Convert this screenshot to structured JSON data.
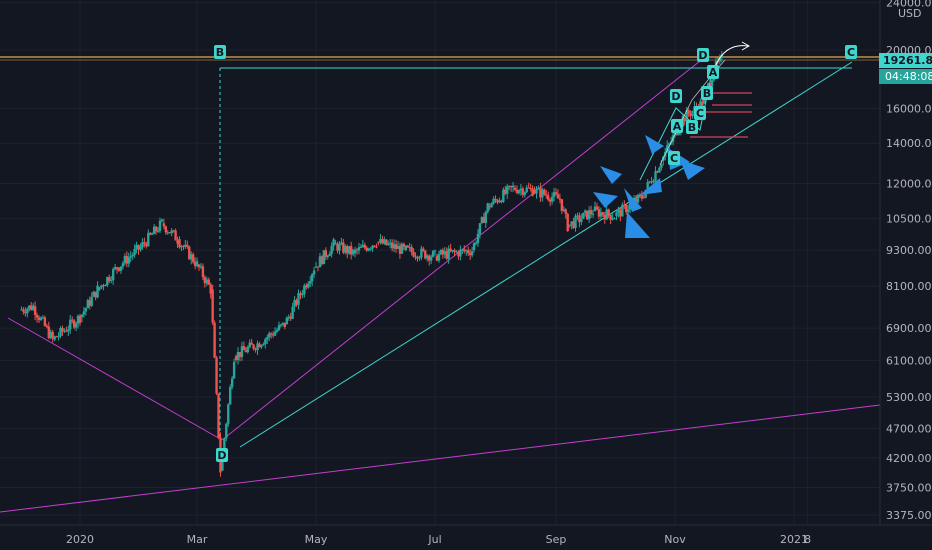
{
  "chart_data": {
    "type": "candlestick",
    "instrument_currency": "USD",
    "y_axis": {
      "scale": "log",
      "ylim": [
        3300,
        24000
      ],
      "ticks": [
        "24000.00",
        "20000.00",
        "16000.00",
        "14000.00",
        "12000.00",
        "10500.00",
        "9300.00",
        "8100.00",
        "6900.00",
        "6100.00",
        "5300.00",
        "4700.00",
        "4200.00",
        "3750.00",
        "3375.00"
      ]
    },
    "x_axis": {
      "ticks": [
        "2020",
        "Mar",
        "May",
        "Jul",
        "Sep",
        "Nov",
        "2021",
        "8"
      ]
    },
    "last_price_label": "19261.88",
    "countdown_label": "04:48:08",
    "series": [
      {
        "values": [
          [
            "2019-12-01",
            7400
          ],
          [
            "2019-12-08",
            7500
          ],
          [
            "2019-12-18",
            6600
          ],
          [
            "2020-01-01",
            7200
          ],
          [
            "2020-01-10",
            8000
          ],
          [
            "2020-01-20",
            8700
          ],
          [
            "2020-02-01",
            9400
          ],
          [
            "2020-02-12",
            10300
          ],
          [
            "2020-02-20",
            9700
          ],
          [
            "2020-03-01",
            8800
          ],
          [
            "2020-03-08",
            8000
          ],
          [
            "2020-03-13",
            4000
          ],
          [
            "2020-03-20",
            6200
          ],
          [
            "2020-04-01",
            6500
          ],
          [
            "2020-04-15",
            7000
          ],
          [
            "2020-04-30",
            8700
          ],
          [
            "2020-05-10",
            9500
          ],
          [
            "2020-05-20",
            9200
          ],
          [
            "2020-06-01",
            9600
          ],
          [
            "2020-06-15",
            9300
          ],
          [
            "2020-07-01",
            9100
          ],
          [
            "2020-07-20",
            9300
          ],
          [
            "2020-07-28",
            11000
          ],
          [
            "2020-08-10",
            11800
          ],
          [
            "2020-08-20",
            11700
          ],
          [
            "2020-09-03",
            11300
          ],
          [
            "2020-09-07",
            10200
          ],
          [
            "2020-09-20",
            10800
          ],
          [
            "2020-10-01",
            10600
          ],
          [
            "2020-10-15",
            11400
          ],
          [
            "2020-10-25",
            13100
          ],
          [
            "2020-11-05",
            15400
          ],
          [
            "2020-11-15",
            16300
          ],
          [
            "2020-11-21",
            18600
          ],
          [
            "2020-11-25",
            19261.88
          ]
        ]
      }
    ],
    "drawn_line_colors": {
      "teal": "#3fd6ce",
      "magenta": "#c33fd0",
      "orange": "#e6a54a",
      "red_marks": "#d2435b",
      "arrows": "#2b8ee6"
    },
    "markers": {
      "start_label": "B",
      "low_label": "D",
      "target_label": "C",
      "pattern_labels": [
        "D",
        "C",
        "A",
        "B",
        "D",
        "C",
        "A",
        "B"
      ]
    },
    "candle_colors": {
      "up": "#26a69a",
      "down": "#ef5350"
    },
    "grid": true
  }
}
